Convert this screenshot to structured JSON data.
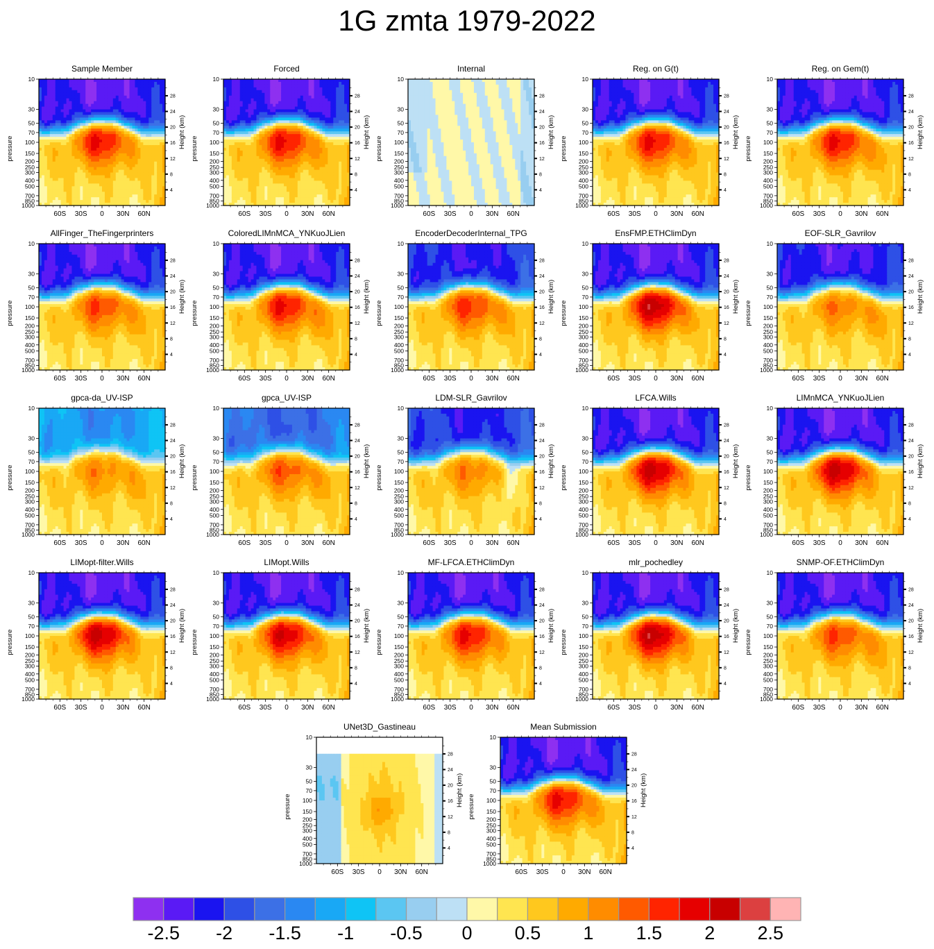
{
  "title": "1G zmta 1979-2022",
  "colors": [
    "#8e30f0",
    "#5a1af5",
    "#1a14f0",
    "#2e50e6",
    "#3c70e6",
    "#2a88f2",
    "#19a8f5",
    "#0fc4f5",
    "#5bc6f2",
    "#98cef0",
    "#bde0f5",
    "#fff8a8",
    "#ffe550",
    "#ffc81e",
    "#ffaa00",
    "#ff8c00",
    "#ff5a00",
    "#ff2400",
    "#e60000",
    "#c80000",
    "#dc4040",
    "#ffb4b4"
  ],
  "chart_data": {
    "type": "heatmap",
    "colorbar": {
      "labels": [
        "-2.5",
        "-2",
        "-1.5",
        "-1",
        "-0.5",
        "0",
        "0.5",
        "1",
        "1.5",
        "2",
        "2.5"
      ],
      "levels": [
        -2.5,
        -2.25,
        -2,
        -1.75,
        -1.5,
        -1.25,
        -1,
        -0.75,
        -0.5,
        -0.25,
        0,
        0.25,
        0.5,
        0.75,
        1,
        1.25,
        1.5,
        1.75,
        2,
        2.25,
        2.5
      ]
    },
    "axes": {
      "x_ticks": [
        "60S",
        "30S",
        "0",
        "30N",
        "60N"
      ],
      "x_tick_values": [
        -60,
        -30,
        0,
        30,
        60
      ],
      "xlim": [
        -90,
        90
      ],
      "ylabel_left": "pressure",
      "ylabel_right": "Height (km)",
      "pressure_ticks": [
        "10",
        "30",
        "50",
        "70",
        "100",
        "150",
        "200",
        "250",
        "300",
        "400",
        "500",
        "700",
        "850",
        "1000"
      ],
      "pressure_values": [
        10,
        30,
        50,
        70,
        100,
        150,
        200,
        250,
        300,
        400,
        500,
        700,
        850,
        1000
      ],
      "height_ticks": [
        "28",
        "24",
        "20",
        "16",
        "12",
        "8",
        "4"
      ],
      "height_values": [
        28,
        24,
        20,
        16,
        12,
        8,
        4
      ],
      "ylim": [
        10,
        1000
      ],
      "y_scale": "log"
    },
    "panels": [
      {
        "title": "Sample Member",
        "trop_peak": 1.9,
        "strat": -2.5,
        "wnh": 0.1
      },
      {
        "title": "Forced",
        "trop_peak": 1.9,
        "strat": -2.5,
        "wnh": 0.2
      },
      {
        "title": "Internal",
        "pattern": "internal"
      },
      {
        "title": "Reg. on G(t)",
        "trop_peak": 1.9,
        "strat": -2.5,
        "wnh": 0.2
      },
      {
        "title": "Reg. on Gem(t)",
        "trop_peak": 1.9,
        "strat": -2.5,
        "wnh": 0.3
      },
      {
        "title": "AllFinger_TheFingerprinters",
        "trop_peak": 1.6,
        "strat": -2.5,
        "wnh": 0.3
      },
      {
        "title": "ColoredLIMnMCA_YNKuoJLien",
        "trop_peak": 1.9,
        "strat": -2.5,
        "wnh": 0.4
      },
      {
        "title": "EncoderDecoderInternal_TPG",
        "trop_peak": 1.7,
        "strat": -2.3,
        "wnh": 0.3
      },
      {
        "title": "EnsFMP.ETHClimDyn",
        "trop_peak": 2.3,
        "strat": -2.5,
        "wnh": 0.2
      },
      {
        "title": "EOF-SLR_Gavrilov",
        "trop_peak": 1.3,
        "strat": -2.4,
        "wnh": 0.4
      },
      {
        "title": "gpca-da_UV-ISP",
        "trop_peak": 1.2,
        "strat": -1.4,
        "wnh": 0.3
      },
      {
        "title": "gpca_UV-ISP",
        "trop_peak": 1.5,
        "strat": -1.8,
        "wnh": 0.3
      },
      {
        "title": "LDM-SLR_Gavrilov",
        "trop_peak": 1.25,
        "strat": -2.2,
        "wnh": -0.5
      },
      {
        "title": "LFCA.Wills",
        "trop_peak": 2.2,
        "strat": -2.5,
        "wnh": 0.1
      },
      {
        "title": "LIMnMCA_YNKuoJLien",
        "trop_peak": 2.2,
        "strat": -2.5,
        "wnh": 0.1
      },
      {
        "title": "LIMopt-filter.Wills",
        "trop_peak": 2.2,
        "strat": -2.5,
        "wnh": 0.1
      },
      {
        "title": "LIMopt.Wills",
        "trop_peak": 2.1,
        "strat": -2.5,
        "wnh": 0.2
      },
      {
        "title": "MF-LFCA.ETHClimDyn",
        "trop_peak": 1.9,
        "strat": -2.5,
        "wnh": 0.1
      },
      {
        "title": "mlr_pochedley",
        "trop_peak": 2.3,
        "strat": -2.5,
        "wnh": 0.1
      },
      {
        "title": "SNMP-OF.ETHClimDyn",
        "trop_peak": 1.6,
        "strat": -2.5,
        "wnh": 0.4
      },
      {
        "title": "UNet3D_Gastineau",
        "pattern": "unet"
      },
      {
        "title": "Mean Submission",
        "trop_peak": 1.9,
        "strat": -2.5,
        "wnh": 0.2
      }
    ]
  }
}
